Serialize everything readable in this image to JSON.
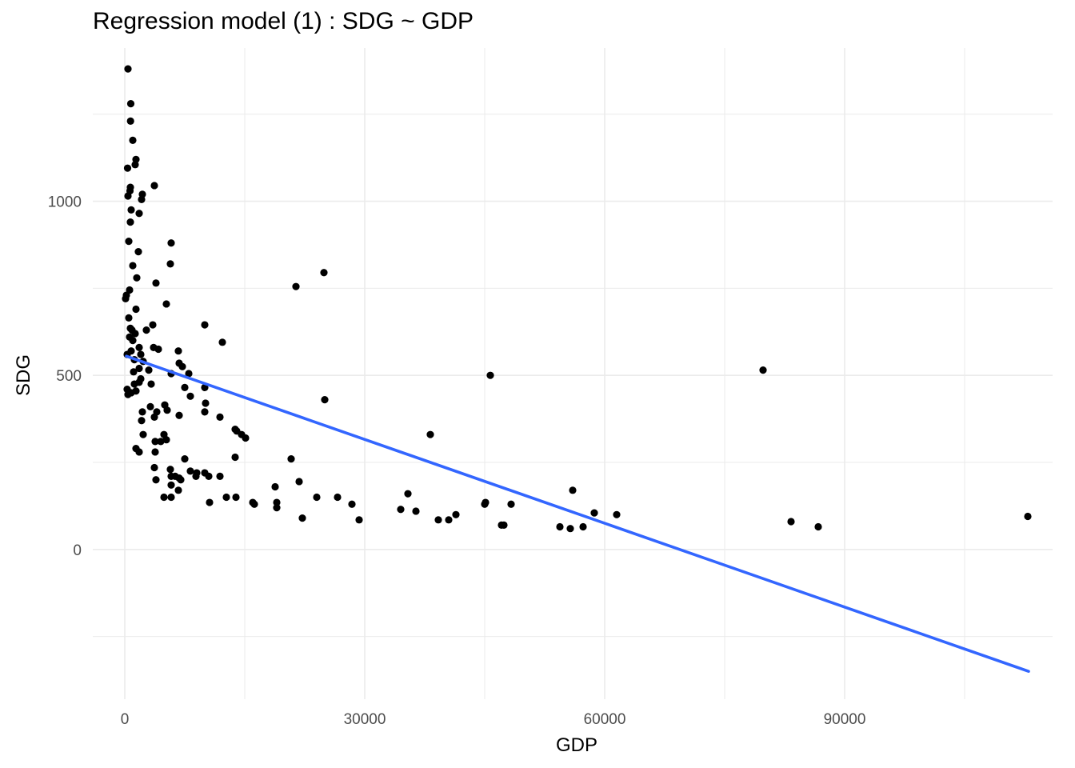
{
  "chart_data": {
    "type": "scatter",
    "title": "Regression model (1) : SDG ~ GDP",
    "xlabel": "GDP",
    "ylabel": "SDG",
    "xlim": [
      -4000,
      116000
    ],
    "ylim": [
      -430,
      1440
    ],
    "x_ticks": [
      0,
      30000,
      60000,
      90000
    ],
    "x_tick_labels": [
      "0",
      "30000",
      "60000",
      "90000"
    ],
    "y_ticks": [
      0,
      500,
      1000
    ],
    "y_tick_labels": [
      "0",
      "500",
      "1000"
    ],
    "grid": true,
    "legend": "none",
    "point_color": "#000000",
    "line_color": "#3366ff",
    "regression_line": {
      "x": [
        200,
        113000
      ],
      "y": [
        555,
        -350
      ]
    },
    "points": [
      [
        400,
        1380
      ],
      [
        750,
        1280
      ],
      [
        720,
        1230
      ],
      [
        1000,
        1175
      ],
      [
        1400,
        1120
      ],
      [
        1300,
        1105
      ],
      [
        350,
        1095
      ],
      [
        700,
        1040
      ],
      [
        650,
        1030
      ],
      [
        400,
        1015
      ],
      [
        2200,
        1020
      ],
      [
        3700,
        1045
      ],
      [
        2100,
        1005
      ],
      [
        800,
        975
      ],
      [
        1800,
        965
      ],
      [
        700,
        940
      ],
      [
        500,
        885
      ],
      [
        5800,
        880
      ],
      [
        1700,
        855
      ],
      [
        5700,
        820
      ],
      [
        1000,
        815
      ],
      [
        1500,
        780
      ],
      [
        200,
        730
      ],
      [
        100,
        720
      ],
      [
        3900,
        765
      ],
      [
        5200,
        705
      ],
      [
        600,
        745
      ],
      [
        2700,
        630
      ],
      [
        3500,
        645
      ],
      [
        1400,
        690
      ],
      [
        500,
        665
      ],
      [
        10000,
        645
      ],
      [
        700,
        635
      ],
      [
        900,
        630
      ],
      [
        1300,
        620
      ],
      [
        600,
        610
      ],
      [
        1000,
        600
      ],
      [
        1800,
        580
      ],
      [
        3600,
        580
      ],
      [
        4200,
        575
      ],
      [
        12200,
        595
      ],
      [
        6700,
        570
      ],
      [
        2000,
        560
      ],
      [
        300,
        560
      ],
      [
        800,
        570
      ],
      [
        1200,
        545
      ],
      [
        2300,
        540
      ],
      [
        6800,
        535
      ],
      [
        1800,
        520
      ],
      [
        7200,
        525
      ],
      [
        1100,
        510
      ],
      [
        3000,
        515
      ],
      [
        5800,
        505
      ],
      [
        8000,
        505
      ],
      [
        300,
        460
      ],
      [
        400,
        445
      ],
      [
        800,
        450
      ],
      [
        1400,
        455
      ],
      [
        1200,
        475
      ],
      [
        1800,
        480
      ],
      [
        2000,
        490
      ],
      [
        3300,
        475
      ],
      [
        7500,
        465
      ],
      [
        10000,
        465
      ],
      [
        8200,
        440
      ],
      [
        10100,
        420
      ],
      [
        5000,
        415
      ],
      [
        3200,
        410
      ],
      [
        2200,
        395
      ],
      [
        4000,
        395
      ],
      [
        5300,
        400
      ],
      [
        6800,
        385
      ],
      [
        10000,
        395
      ],
      [
        11900,
        380
      ],
      [
        3700,
        380
      ],
      [
        2100,
        370
      ],
      [
        13800,
        345
      ],
      [
        14000,
        340
      ],
      [
        14600,
        330
      ],
      [
        15100,
        320
      ],
      [
        4900,
        330
      ],
      [
        5200,
        315
      ],
      [
        4500,
        310
      ],
      [
        3800,
        310
      ],
      [
        2300,
        330
      ],
      [
        1400,
        290
      ],
      [
        1800,
        280
      ],
      [
        3800,
        280
      ],
      [
        13800,
        265
      ],
      [
        7500,
        260
      ],
      [
        20800,
        260
      ],
      [
        3700,
        235
      ],
      [
        5700,
        230
      ],
      [
        8200,
        225
      ],
      [
        9000,
        220
      ],
      [
        10000,
        220
      ],
      [
        5800,
        210
      ],
      [
        6300,
        210
      ],
      [
        6800,
        205
      ],
      [
        7000,
        200
      ],
      [
        8900,
        210
      ],
      [
        10500,
        210
      ],
      [
        11900,
        210
      ],
      [
        3900,
        200
      ],
      [
        5800,
        185
      ],
      [
        4900,
        150
      ],
      [
        5800,
        150
      ],
      [
        6700,
        170
      ],
      [
        10600,
        135
      ],
      [
        12700,
        150
      ],
      [
        13900,
        150
      ],
      [
        18800,
        180
      ],
      [
        21800,
        195
      ],
      [
        24000,
        150
      ],
      [
        26600,
        150
      ],
      [
        16000,
        135
      ],
      [
        16200,
        130
      ],
      [
        19000,
        120
      ],
      [
        19000,
        135
      ],
      [
        22200,
        90
      ],
      [
        28400,
        130
      ],
      [
        29300,
        85
      ],
      [
        34500,
        115
      ],
      [
        35400,
        160
      ],
      [
        36400,
        110
      ],
      [
        38200,
        330
      ],
      [
        24900,
        795
      ],
      [
        21400,
        755
      ],
      [
        25000,
        430
      ],
      [
        45700,
        500
      ],
      [
        79800,
        515
      ],
      [
        39200,
        85
      ],
      [
        40500,
        85
      ],
      [
        41400,
        100
      ],
      [
        45000,
        130
      ],
      [
        45100,
        135
      ],
      [
        47100,
        70
      ],
      [
        47400,
        70
      ],
      [
        48300,
        130
      ],
      [
        54400,
        65
      ],
      [
        55700,
        60
      ],
      [
        56000,
        170
      ],
      [
        57300,
        65
      ],
      [
        58700,
        105
      ],
      [
        61500,
        100
      ],
      [
        83300,
        80
      ],
      [
        86700,
        65
      ],
      [
        112900,
        95
      ]
    ]
  }
}
